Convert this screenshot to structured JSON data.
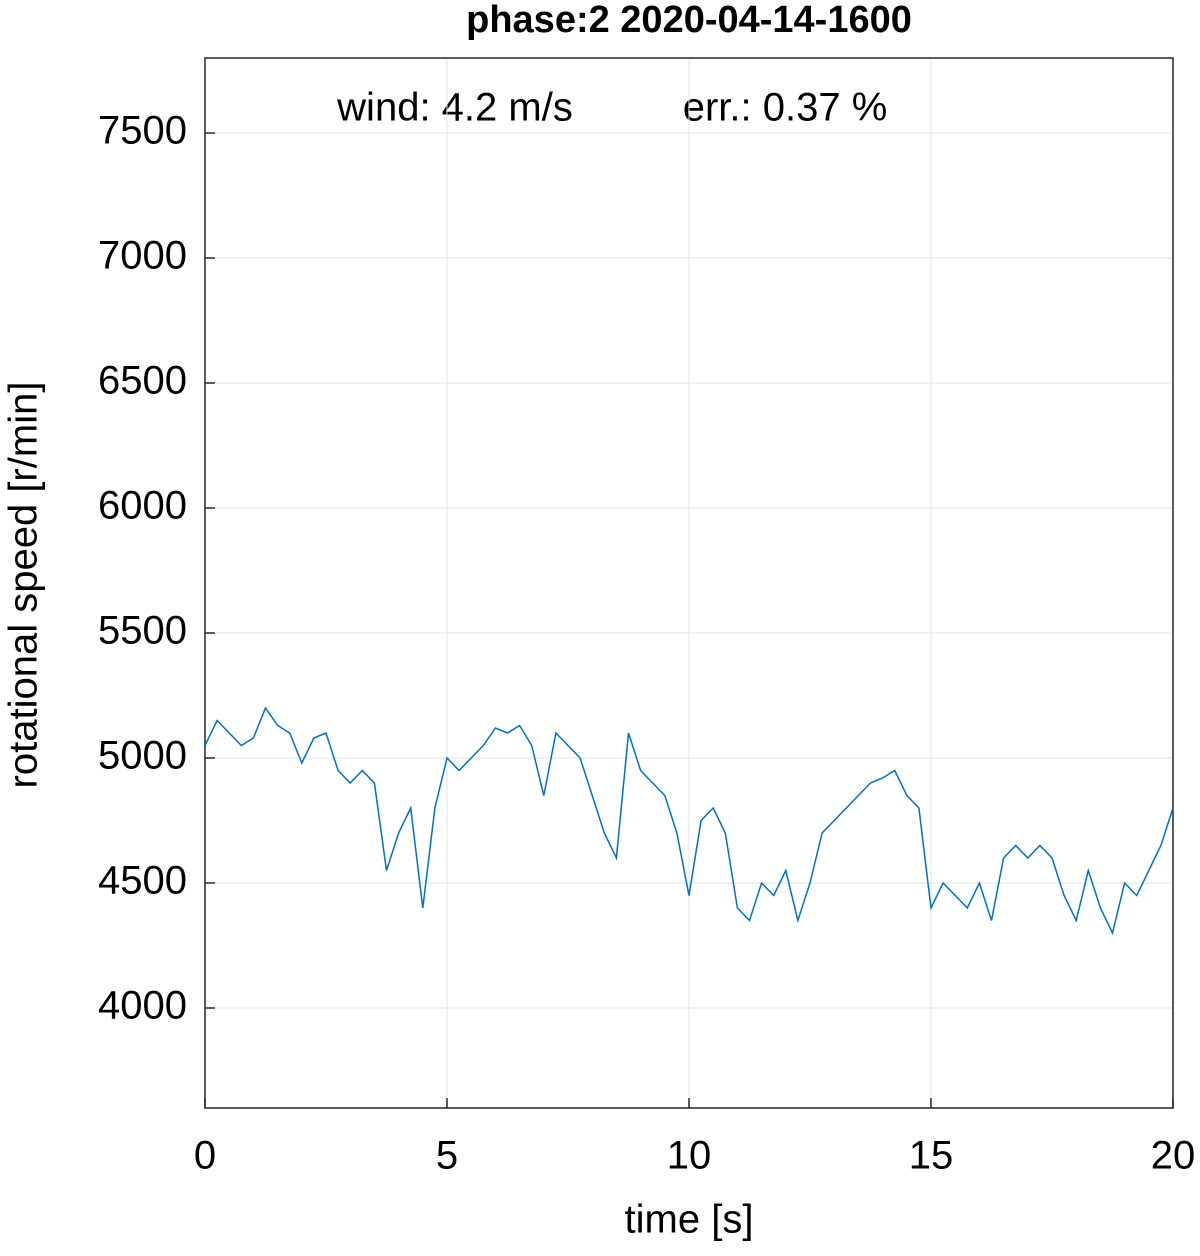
{
  "chart_data": {
    "type": "line",
    "title": "phase:2 2020-04-14-1600",
    "annotations": [
      "wind: 4.2 m/s",
      "err.: 0.37 %"
    ],
    "x_label": "time [s]",
    "y_label": "rotational speed [r/min]",
    "xlim": [
      0,
      20
    ],
    "xticks": [
      0,
      5,
      10,
      15,
      20
    ],
    "ylim": [
      3600,
      7800
    ],
    "yticks": [
      4000,
      4500,
      5000,
      5500,
      6000,
      6500,
      7000,
      7500
    ],
    "grid": true,
    "x": [
      0,
      0.25,
      0.5,
      0.75,
      1,
      1.25,
      1.5,
      1.75,
      2,
      2.25,
      2.5,
      2.75,
      3,
      3.25,
      3.5,
      3.75,
      4,
      4.25,
      4.5,
      4.75,
      5,
      5.25,
      5.5,
      5.75,
      6,
      6.25,
      6.5,
      6.75,
      7,
      7.25,
      7.5,
      7.75,
      8,
      8.25,
      8.5,
      8.75,
      9,
      9.25,
      9.5,
      9.75,
      10,
      10.25,
      10.5,
      10.75,
      11,
      11.25,
      11.5,
      11.75,
      12,
      12.25,
      12.5,
      12.75,
      13,
      13.25,
      13.5,
      13.75,
      14,
      14.25,
      14.5,
      14.75,
      15,
      15.25,
      15.5,
      15.75,
      16,
      16.25,
      16.5,
      16.75,
      17,
      17.25,
      17.5,
      17.75,
      18,
      18.25,
      18.5,
      18.75,
      19,
      19.25,
      19.5,
      19.75,
      20
    ],
    "series": [
      {
        "name": "rotational speed",
        "color": "#0072bd",
        "values": [
          5050,
          5150,
          5100,
          5050,
          5080,
          5200,
          5130,
          5100,
          4980,
          5080,
          5100,
          4950,
          4900,
          4950,
          4900,
          4550,
          4700,
          4800,
          4400,
          4800,
          5000,
          4950,
          5000,
          5050,
          5120,
          5100,
          5130,
          5050,
          4850,
          5100,
          5050,
          5000,
          4850,
          4700,
          4600,
          5100,
          4950,
          4900,
          4850,
          4700,
          4450,
          4750,
          4800,
          4700,
          4400,
          4350,
          4500,
          4450,
          4550,
          4350,
          4500,
          4700,
          4750,
          4800,
          4850,
          4900,
          4920,
          4950,
          4850,
          4800,
          4400,
          4500,
          4450,
          4400,
          4500,
          4350,
          4600,
          4650,
          4600,
          4650,
          4600,
          4450,
          4350,
          4550,
          4400,
          4300,
          4500,
          4450,
          4550,
          4650,
          4800
        ]
      }
    ]
  }
}
